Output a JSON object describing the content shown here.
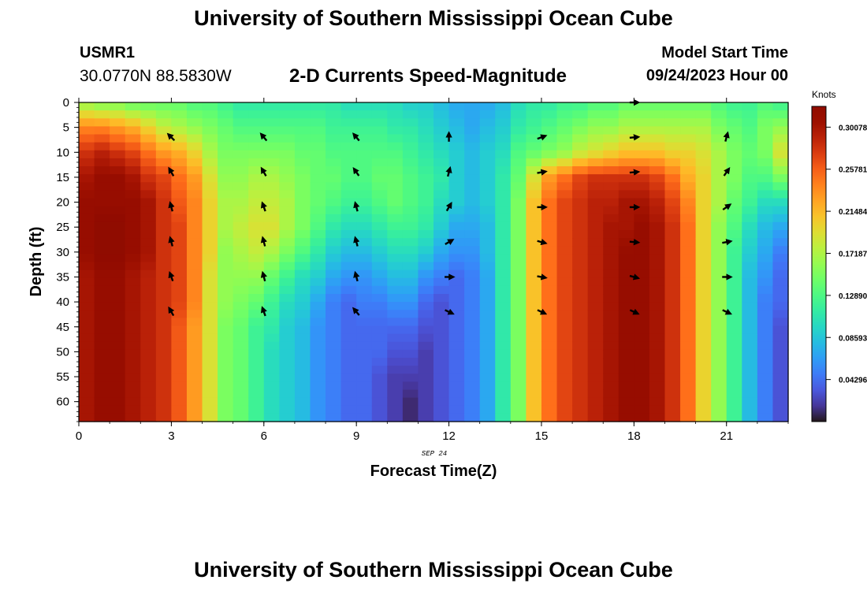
{
  "header": {
    "title": "University of Southern Mississippi Ocean Cube",
    "station_id": "USMR1",
    "coordinates": "30.0770N  88.5830W",
    "subtitle": "2-D Currents Speed-Magnitude",
    "model_start_label": "Model Start Time",
    "model_start_value": "09/24/2023 Hour 00"
  },
  "footer": {
    "title": "University of Southern Mississippi Ocean Cube"
  },
  "chart_data": {
    "type": "heatmap",
    "xlabel": "Forecast Time(Z)",
    "ylabel": "Depth (ft)",
    "date_label": "SEP 24",
    "x_ticks": [
      0,
      3,
      6,
      9,
      12,
      15,
      18,
      21
    ],
    "y_ticks": [
      0,
      5,
      10,
      15,
      20,
      25,
      30,
      35,
      40,
      45,
      50,
      55,
      60
    ],
    "xlim": [
      0,
      23
    ],
    "ylim": [
      0,
      64
    ],
    "y_inverted": true,
    "colorbar": {
      "title": "Knots",
      "ticks": [
        "0.04296",
        "0.08593",
        "0.12890",
        "0.17187",
        "0.21484",
        "0.25781",
        "0.30078"
      ],
      "tick_values": [
        0.04296,
        0.08593,
        0.1289,
        0.17187,
        0.21484,
        0.25781,
        0.30078
      ],
      "range": [
        0.0,
        0.322
      ],
      "colormap": "turbo"
    },
    "speed_columns": {
      "hours": [
        0,
        0.5,
        1,
        1.5,
        2,
        2.5,
        3,
        3.5,
        4,
        4.5,
        5,
        5.5,
        6,
        6.5,
        7,
        7.5,
        8,
        8.5,
        9,
        9.5,
        10,
        10.5,
        11,
        11.5,
        12,
        12.5,
        13,
        13.5,
        14,
        14.5,
        15,
        15.5,
        16,
        16.5,
        17,
        17.5,
        18,
        18.5,
        19,
        19.5,
        20,
        20.5,
        21,
        21.5,
        22,
        22.5
      ],
      "depths": [
        0,
        5,
        10,
        15,
        20,
        25,
        30,
        35,
        40,
        45,
        50,
        55,
        60,
        64
      ],
      "values": [
        [
          0.16,
          0.24,
          0.28,
          0.3,
          0.31,
          0.31,
          0.31,
          0.3,
          0.3,
          0.3,
          0.3,
          0.3,
          0.3,
          0.3
        ],
        [
          0.15,
          0.24,
          0.29,
          0.31,
          0.31,
          0.32,
          0.32,
          0.31,
          0.31,
          0.31,
          0.31,
          0.31,
          0.31,
          0.31
        ],
        [
          0.15,
          0.23,
          0.28,
          0.31,
          0.31,
          0.32,
          0.32,
          0.31,
          0.31,
          0.31,
          0.31,
          0.31,
          0.31,
          0.31
        ],
        [
          0.14,
          0.22,
          0.27,
          0.3,
          0.31,
          0.31,
          0.31,
          0.3,
          0.3,
          0.3,
          0.3,
          0.3,
          0.3,
          0.3
        ],
        [
          0.14,
          0.2,
          0.25,
          0.28,
          0.3,
          0.3,
          0.3,
          0.29,
          0.29,
          0.29,
          0.29,
          0.29,
          0.29,
          0.29
        ],
        [
          0.14,
          0.18,
          0.23,
          0.27,
          0.28,
          0.28,
          0.28,
          0.28,
          0.28,
          0.28,
          0.28,
          0.28,
          0.28,
          0.28
        ],
        [
          0.14,
          0.17,
          0.22,
          0.25,
          0.26,
          0.27,
          0.27,
          0.27,
          0.27,
          0.26,
          0.26,
          0.26,
          0.26,
          0.26
        ],
        [
          0.13,
          0.16,
          0.2,
          0.23,
          0.24,
          0.24,
          0.24,
          0.24,
          0.24,
          0.23,
          0.23,
          0.23,
          0.23,
          0.23
        ],
        [
          0.13,
          0.15,
          0.17,
          0.19,
          0.2,
          0.2,
          0.2,
          0.19,
          0.19,
          0.19,
          0.19,
          0.19,
          0.19,
          0.19
        ],
        [
          0.12,
          0.14,
          0.15,
          0.16,
          0.17,
          0.17,
          0.16,
          0.16,
          0.16,
          0.15,
          0.15,
          0.15,
          0.15,
          0.15
        ],
        [
          0.11,
          0.13,
          0.15,
          0.16,
          0.17,
          0.18,
          0.17,
          0.16,
          0.15,
          0.14,
          0.14,
          0.14,
          0.14,
          0.14
        ],
        [
          0.11,
          0.13,
          0.15,
          0.17,
          0.18,
          0.19,
          0.18,
          0.16,
          0.14,
          0.12,
          0.12,
          0.12,
          0.12,
          0.12
        ],
        [
          0.11,
          0.13,
          0.15,
          0.17,
          0.18,
          0.19,
          0.17,
          0.14,
          0.12,
          0.11,
          0.1,
          0.1,
          0.1,
          0.1
        ],
        [
          0.11,
          0.13,
          0.15,
          0.16,
          0.17,
          0.17,
          0.15,
          0.12,
          0.1,
          0.09,
          0.09,
          0.09,
          0.09,
          0.09
        ],
        [
          0.11,
          0.13,
          0.14,
          0.15,
          0.15,
          0.15,
          0.13,
          0.1,
          0.09,
          0.08,
          0.08,
          0.08,
          0.08,
          0.08
        ],
        [
          0.11,
          0.13,
          0.14,
          0.14,
          0.14,
          0.13,
          0.11,
          0.09,
          0.07,
          0.06,
          0.06,
          0.06,
          0.06,
          0.06
        ],
        [
          0.11,
          0.12,
          0.13,
          0.14,
          0.13,
          0.11,
          0.09,
          0.07,
          0.05,
          0.05,
          0.05,
          0.05,
          0.05,
          0.05
        ],
        [
          0.1,
          0.12,
          0.13,
          0.13,
          0.12,
          0.1,
          0.08,
          0.06,
          0.04,
          0.04,
          0.04,
          0.04,
          0.04,
          0.04
        ],
        [
          0.1,
          0.12,
          0.13,
          0.13,
          0.12,
          0.1,
          0.08,
          0.06,
          0.05,
          0.04,
          0.04,
          0.04,
          0.04,
          0.04
        ],
        [
          0.1,
          0.12,
          0.13,
          0.14,
          0.13,
          0.11,
          0.09,
          0.07,
          0.05,
          0.04,
          0.04,
          0.03,
          0.03,
          0.03
        ],
        [
          0.1,
          0.11,
          0.13,
          0.14,
          0.14,
          0.12,
          0.1,
          0.08,
          0.06,
          0.04,
          0.03,
          0.02,
          0.02,
          0.02
        ],
        [
          0.09,
          0.11,
          0.12,
          0.13,
          0.13,
          0.12,
          0.1,
          0.08,
          0.06,
          0.04,
          0.03,
          0.02,
          0.01,
          0.01
        ],
        [
          0.09,
          0.1,
          0.11,
          0.12,
          0.12,
          0.11,
          0.09,
          0.06,
          0.04,
          0.03,
          0.02,
          0.02,
          0.02,
          0.02
        ],
        [
          0.08,
          0.09,
          0.1,
          0.11,
          0.1,
          0.09,
          0.07,
          0.05,
          0.03,
          0.03,
          0.03,
          0.03,
          0.03,
          0.03
        ],
        [
          0.07,
          0.08,
          0.09,
          0.09,
          0.09,
          0.07,
          0.06,
          0.04,
          0.04,
          0.04,
          0.04,
          0.04,
          0.04,
          0.04
        ],
        [
          0.07,
          0.07,
          0.08,
          0.08,
          0.08,
          0.07,
          0.06,
          0.05,
          0.05,
          0.05,
          0.05,
          0.05,
          0.05,
          0.05
        ],
        [
          0.07,
          0.08,
          0.09,
          0.09,
          0.09,
          0.08,
          0.08,
          0.07,
          0.07,
          0.07,
          0.07,
          0.07,
          0.07,
          0.07
        ],
        [
          0.08,
          0.09,
          0.1,
          0.11,
          0.11,
          0.11,
          0.11,
          0.11,
          0.11,
          0.11,
          0.11,
          0.11,
          0.11,
          0.11
        ],
        [
          0.1,
          0.11,
          0.13,
          0.14,
          0.15,
          0.15,
          0.15,
          0.15,
          0.15,
          0.15,
          0.15,
          0.15,
          0.15,
          0.15
        ],
        [
          0.11,
          0.12,
          0.14,
          0.19,
          0.21,
          0.21,
          0.21,
          0.21,
          0.21,
          0.21,
          0.21,
          0.21,
          0.21,
          0.21
        ],
        [
          0.11,
          0.13,
          0.15,
          0.23,
          0.25,
          0.25,
          0.25,
          0.25,
          0.25,
          0.25,
          0.25,
          0.25,
          0.25,
          0.25
        ],
        [
          0.12,
          0.14,
          0.16,
          0.25,
          0.27,
          0.27,
          0.27,
          0.27,
          0.27,
          0.27,
          0.27,
          0.27,
          0.27,
          0.27
        ],
        [
          0.12,
          0.15,
          0.18,
          0.27,
          0.28,
          0.28,
          0.28,
          0.28,
          0.28,
          0.28,
          0.28,
          0.28,
          0.28,
          0.28
        ],
        [
          0.13,
          0.16,
          0.19,
          0.28,
          0.29,
          0.29,
          0.29,
          0.29,
          0.29,
          0.29,
          0.29,
          0.29,
          0.29,
          0.29
        ],
        [
          0.13,
          0.16,
          0.2,
          0.28,
          0.29,
          0.3,
          0.3,
          0.3,
          0.3,
          0.3,
          0.3,
          0.3,
          0.3,
          0.3
        ],
        [
          0.14,
          0.17,
          0.21,
          0.28,
          0.3,
          0.3,
          0.31,
          0.31,
          0.31,
          0.31,
          0.31,
          0.31,
          0.31,
          0.31
        ],
        [
          0.14,
          0.17,
          0.21,
          0.28,
          0.3,
          0.31,
          0.31,
          0.31,
          0.31,
          0.31,
          0.31,
          0.31,
          0.31,
          0.31
        ],
        [
          0.14,
          0.17,
          0.21,
          0.27,
          0.29,
          0.3,
          0.3,
          0.3,
          0.3,
          0.3,
          0.3,
          0.3,
          0.3,
          0.3
        ],
        [
          0.14,
          0.17,
          0.2,
          0.25,
          0.27,
          0.28,
          0.28,
          0.28,
          0.28,
          0.28,
          0.28,
          0.28,
          0.28,
          0.28
        ],
        [
          0.14,
          0.17,
          0.2,
          0.22,
          0.24,
          0.25,
          0.25,
          0.25,
          0.25,
          0.25,
          0.25,
          0.25,
          0.25,
          0.25
        ],
        [
          0.14,
          0.17,
          0.19,
          0.2,
          0.2,
          0.2,
          0.2,
          0.2,
          0.2,
          0.2,
          0.2,
          0.2,
          0.2,
          0.2
        ],
        [
          0.13,
          0.15,
          0.17,
          0.17,
          0.17,
          0.16,
          0.16,
          0.16,
          0.16,
          0.16,
          0.16,
          0.16,
          0.16,
          0.16
        ],
        [
          0.12,
          0.14,
          0.15,
          0.15,
          0.14,
          0.13,
          0.12,
          0.12,
          0.12,
          0.12,
          0.12,
          0.12,
          0.12,
          0.12
        ],
        [
          0.12,
          0.13,
          0.14,
          0.13,
          0.12,
          0.1,
          0.09,
          0.08,
          0.08,
          0.08,
          0.08,
          0.08,
          0.08,
          0.08
        ],
        [
          0.13,
          0.15,
          0.15,
          0.13,
          0.1,
          0.08,
          0.07,
          0.06,
          0.05,
          0.05,
          0.05,
          0.05,
          0.05,
          0.05
        ],
        [
          0.12,
          0.16,
          0.19,
          0.15,
          0.1,
          0.07,
          0.05,
          0.04,
          0.04,
          0.03,
          0.03,
          0.03,
          0.03,
          0.03
        ]
      ]
    },
    "current_vectors": [
      {
        "hour": 3,
        "depth": 7,
        "angle_deg": 315
      },
      {
        "hour": 3,
        "depth": 14,
        "angle_deg": 330
      },
      {
        "hour": 3,
        "depth": 21,
        "angle_deg": 345
      },
      {
        "hour": 3,
        "depth": 28,
        "angle_deg": 345
      },
      {
        "hour": 3,
        "depth": 35,
        "angle_deg": 340
      },
      {
        "hour": 3,
        "depth": 42,
        "angle_deg": 330
      },
      {
        "hour": 6,
        "depth": 7,
        "angle_deg": 320
      },
      {
        "hour": 6,
        "depth": 14,
        "angle_deg": 330
      },
      {
        "hour": 6,
        "depth": 21,
        "angle_deg": 340
      },
      {
        "hour": 6,
        "depth": 28,
        "angle_deg": 345
      },
      {
        "hour": 6,
        "depth": 35,
        "angle_deg": 345
      },
      {
        "hour": 6,
        "depth": 42,
        "angle_deg": 340
      },
      {
        "hour": 9,
        "depth": 7,
        "angle_deg": 320
      },
      {
        "hour": 9,
        "depth": 14,
        "angle_deg": 325
      },
      {
        "hour": 9,
        "depth": 21,
        "angle_deg": 345
      },
      {
        "hour": 9,
        "depth": 28,
        "angle_deg": 345
      },
      {
        "hour": 9,
        "depth": 35,
        "angle_deg": 345
      },
      {
        "hour": 9,
        "depth": 42,
        "angle_deg": 320
      },
      {
        "hour": 12,
        "depth": 7,
        "angle_deg": 0
      },
      {
        "hour": 12,
        "depth": 14,
        "angle_deg": 15
      },
      {
        "hour": 12,
        "depth": 21,
        "angle_deg": 30
      },
      {
        "hour": 12,
        "depth": 28,
        "angle_deg": 60
      },
      {
        "hour": 12,
        "depth": 35,
        "angle_deg": 90
      },
      {
        "hour": 12,
        "depth": 42,
        "angle_deg": 115
      },
      {
        "hour": 15,
        "depth": 7,
        "angle_deg": 70
      },
      {
        "hour": 15,
        "depth": 14,
        "angle_deg": 80
      },
      {
        "hour": 15,
        "depth": 21,
        "angle_deg": 90
      },
      {
        "hour": 15,
        "depth": 28,
        "angle_deg": 105
      },
      {
        "hour": 15,
        "depth": 35,
        "angle_deg": 100
      },
      {
        "hour": 15,
        "depth": 42,
        "angle_deg": 115
      },
      {
        "hour": 18,
        "depth": 0,
        "angle_deg": 90
      },
      {
        "hour": 18,
        "depth": 7,
        "angle_deg": 85
      },
      {
        "hour": 18,
        "depth": 14,
        "angle_deg": 85
      },
      {
        "hour": 18,
        "depth": 21,
        "angle_deg": 90
      },
      {
        "hour": 18,
        "depth": 28,
        "angle_deg": 95
      },
      {
        "hour": 18,
        "depth": 35,
        "angle_deg": 105
      },
      {
        "hour": 18,
        "depth": 42,
        "angle_deg": 115
      },
      {
        "hour": 21,
        "depth": 7,
        "angle_deg": 15
      },
      {
        "hour": 21,
        "depth": 14,
        "angle_deg": 35
      },
      {
        "hour": 21,
        "depth": 21,
        "angle_deg": 55
      },
      {
        "hour": 21,
        "depth": 28,
        "angle_deg": 80
      },
      {
        "hour": 21,
        "depth": 35,
        "angle_deg": 90
      },
      {
        "hour": 21,
        "depth": 42,
        "angle_deg": 115
      }
    ],
    "grid": false
  }
}
